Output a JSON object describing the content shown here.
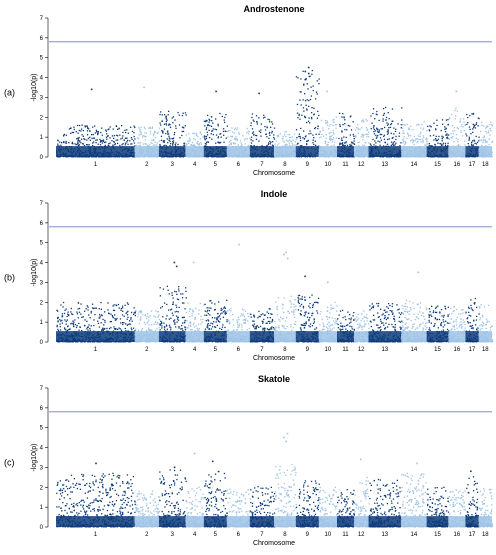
{
  "chart_data": [
    {
      "type": "scatter",
      "panel_label": "(a)",
      "title": "Androstenone",
      "xlabel": "Chromosome",
      "ylabel": "-log10(p)",
      "ylim": [
        0,
        7
      ],
      "yticks": [
        0,
        1,
        2,
        3,
        4,
        5,
        6,
        7
      ],
      "threshold": 5.8,
      "chromosomes": [
        "1",
        "2",
        "3",
        "4",
        "5",
        "6",
        "7",
        "8",
        "9",
        "10",
        "11",
        "12",
        "13",
        "14",
        "15",
        "16",
        "17",
        "18"
      ],
      "series": [
        {
          "values": [
            1.6,
            1.5,
            2.3,
            1.3,
            2.2,
            1.5,
            2.2,
            1.3,
            4.5,
            2.0,
            2.2,
            1.9,
            2.5,
            1.8,
            1.9,
            2.5,
            2.2,
            1.8
          ]
        }
      ],
      "peaks": [
        [
          9,
          4.5
        ],
        [
          9,
          4.3
        ],
        [
          9,
          4.2
        ],
        [
          9,
          3.9
        ],
        [
          7,
          3.2
        ],
        [
          16,
          3.3
        ],
        [
          1,
          3.4
        ],
        [
          2,
          3.5
        ],
        [
          5,
          3.3
        ],
        [
          10,
          3.3
        ]
      ],
      "colors": [
        "#0d3b7a",
        "#9ec3e6"
      ],
      "threshold_color": "#6f7fc4"
    },
    {
      "type": "scatter",
      "panel_label": "(b)",
      "title": "Indole",
      "xlabel": "Chromosome",
      "ylabel": "-log10(p)",
      "ylim": [
        0,
        7
      ],
      "yticks": [
        0,
        1,
        2,
        3,
        4,
        5,
        6,
        7
      ],
      "threshold": 5.8,
      "chromosomes": [
        "1",
        "2",
        "3",
        "4",
        "5",
        "6",
        "7",
        "8",
        "9",
        "10",
        "11",
        "12",
        "13",
        "14",
        "15",
        "16",
        "17",
        "18"
      ],
      "series": [
        {
          "values": [
            2.0,
            1.6,
            2.8,
            2.0,
            2.1,
            1.7,
            1.7,
            2.3,
            2.4,
            2.0,
            1.6,
            1.6,
            2.0,
            2.1,
            1.8,
            1.8,
            2.3,
            1.9
          ]
        }
      ],
      "peaks": [
        [
          6,
          4.9
        ],
        [
          8,
          4.5
        ],
        [
          8,
          4.4
        ],
        [
          8,
          4.2
        ],
        [
          3,
          4.0
        ],
        [
          3,
          3.8
        ],
        [
          4,
          4.0
        ],
        [
          14,
          3.5
        ],
        [
          9,
          3.3
        ],
        [
          10,
          3.0
        ]
      ],
      "colors": [
        "#0d3b7a",
        "#9ec3e6"
      ],
      "threshold_color": "#6f7fc4"
    },
    {
      "type": "scatter",
      "panel_label": "(c)",
      "title": "Skatole",
      "xlabel": "Chromosome",
      "ylabel": "-log10(p)",
      "ylim": [
        0,
        7
      ],
      "yticks": [
        0,
        1,
        2,
        3,
        4,
        5,
        6,
        7
      ],
      "threshold": 5.8,
      "chromosomes": [
        "1",
        "2",
        "3",
        "4",
        "5",
        "6",
        "7",
        "8",
        "9",
        "10",
        "11",
        "12",
        "13",
        "14",
        "15",
        "16",
        "17",
        "18"
      ],
      "series": [
        {
          "values": [
            2.7,
            1.8,
            2.9,
            2.0,
            2.8,
            1.9,
            2.1,
            3.2,
            2.4,
            2.0,
            1.9,
            2.5,
            2.4,
            2.7,
            2.0,
            1.9,
            2.6,
            2.0
          ]
        }
      ],
      "peaks": [
        [
          8,
          4.7
        ],
        [
          8,
          4.5
        ],
        [
          8,
          4.3
        ],
        [
          4,
          3.7
        ],
        [
          5,
          3.3
        ],
        [
          1,
          3.2
        ],
        [
          3,
          3.0
        ],
        [
          12,
          3.4
        ],
        [
          14,
          3.2
        ],
        [
          17,
          2.8
        ]
      ],
      "colors": [
        "#0d3b7a",
        "#9ec3e6"
      ],
      "threshold_color": "#6f7fc4"
    }
  ]
}
